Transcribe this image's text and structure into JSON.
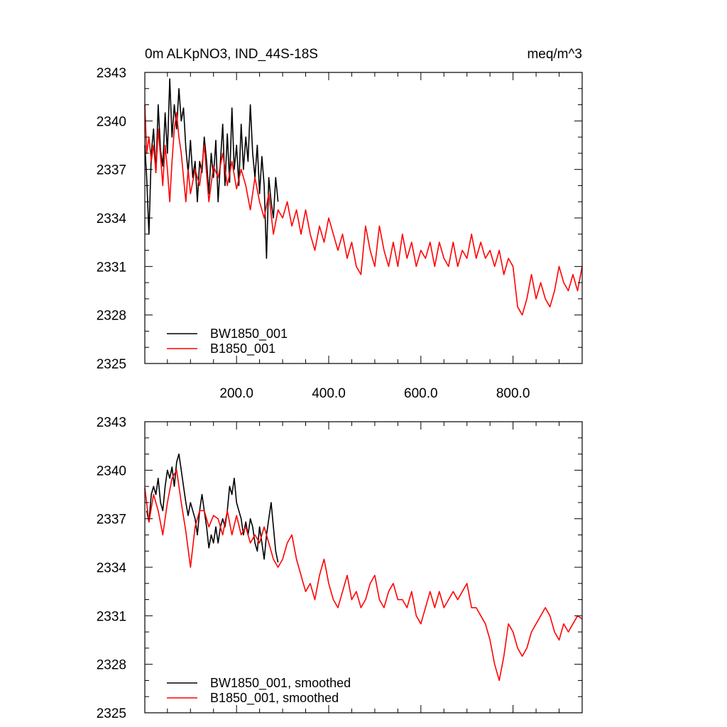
{
  "chart_data": [
    {
      "type": "line",
      "title": "0m ALKpNO3, IND_44S-18S",
      "units": "meq/m^3",
      "xlim": [
        1,
        950
      ],
      "ylim": [
        2325,
        2343
      ],
      "yticks": [
        2325,
        2328,
        2331,
        2334,
        2337,
        2340,
        2343
      ],
      "ytick_labels": [
        "2325",
        "2328",
        "2331",
        "2334",
        "2337",
        "2340",
        "2343"
      ],
      "xticks": [
        200,
        400,
        600,
        800
      ],
      "xtick_labels": [
        "200.0",
        "400.0",
        "600.0",
        "800.0"
      ],
      "legend": [
        "BW1850_001",
        "B1850_001"
      ],
      "legend_position": "bottom-left",
      "series": [
        {
          "name": "BW1850_001",
          "color": "#000000",
          "x": [
            1,
            5,
            10,
            15,
            20,
            25,
            30,
            35,
            40,
            45,
            50,
            55,
            60,
            65,
            70,
            75,
            80,
            85,
            90,
            95,
            100,
            105,
            110,
            115,
            120,
            125,
            130,
            135,
            140,
            145,
            150,
            155,
            160,
            165,
            170,
            175,
            180,
            185,
            190,
            195,
            200,
            205,
            210,
            215,
            220,
            225,
            230,
            235,
            240,
            245,
            250,
            255,
            260,
            265,
            270,
            275,
            280,
            285,
            290
          ],
          "values": [
            2338.5,
            2336.5,
            2333.0,
            2338.0,
            2339.5,
            2336.8,
            2341.0,
            2338.2,
            2337.2,
            2340.5,
            2338.0,
            2342.6,
            2339.0,
            2341.0,
            2339.5,
            2342.0,
            2340.0,
            2340.8,
            2338.3,
            2336.8,
            2338.8,
            2336.5,
            2337.5,
            2335.0,
            2337.5,
            2336.8,
            2339.0,
            2337.5,
            2335.5,
            2338.0,
            2336.5,
            2338.8,
            2335.0,
            2337.5,
            2339.8,
            2336.0,
            2339.2,
            2336.2,
            2340.8,
            2337.0,
            2338.5,
            2336.0,
            2339.8,
            2337.0,
            2339.0,
            2337.5,
            2341.0,
            2338.0,
            2336.5,
            2338.5,
            2335.5,
            2337.8,
            2336.0,
            2331.5,
            2336.5,
            2335.0,
            2334.0,
            2336.5,
            2335.0
          ]
        },
        {
          "name": "B1850_001",
          "color": "#ff0000",
          "x": [
            1,
            5,
            10,
            15,
            20,
            25,
            30,
            35,
            40,
            45,
            50,
            55,
            60,
            65,
            70,
            75,
            80,
            85,
            90,
            95,
            100,
            110,
            120,
            130,
            140,
            150,
            160,
            170,
            180,
            190,
            200,
            210,
            220,
            230,
            240,
            250,
            260,
            270,
            280,
            290,
            300,
            310,
            320,
            330,
            340,
            350,
            360,
            370,
            380,
            390,
            400,
            410,
            420,
            430,
            440,
            450,
            460,
            470,
            480,
            490,
            500,
            510,
            520,
            530,
            540,
            550,
            560,
            570,
            580,
            590,
            600,
            610,
            620,
            630,
            640,
            650,
            660,
            670,
            680,
            690,
            700,
            710,
            720,
            730,
            740,
            750,
            760,
            770,
            780,
            790,
            800,
            810,
            820,
            830,
            840,
            850,
            860,
            870,
            880,
            890,
            900,
            910,
            920,
            930,
            940,
            950
          ],
          "values": [
            2341.0,
            2338.0,
            2339.0,
            2337.5,
            2338.5,
            2336.8,
            2339.5,
            2337.8,
            2336.0,
            2338.5,
            2337.0,
            2335.0,
            2337.5,
            2339.5,
            2340.5,
            2339.0,
            2338.0,
            2336.5,
            2335.0,
            2337.0,
            2335.5,
            2337.0,
            2336.0,
            2338.5,
            2335.0,
            2337.2,
            2336.5,
            2338.0,
            2336.0,
            2337.5,
            2335.8,
            2337.0,
            2336.0,
            2334.5,
            2336.5,
            2335.0,
            2334.0,
            2335.5,
            2333.0,
            2334.5,
            2334.0,
            2335.0,
            2333.5,
            2334.5,
            2333.0,
            2334.5,
            2333.0,
            2332.0,
            2333.5,
            2332.5,
            2334.0,
            2333.0,
            2332.0,
            2333.0,
            2331.5,
            2332.5,
            2331.0,
            2330.5,
            2333.5,
            2332.0,
            2331.0,
            2333.5,
            2332.0,
            2331.0,
            2332.5,
            2331.0,
            2333.0,
            2331.5,
            2332.5,
            2331.0,
            2332.0,
            2331.5,
            2332.5,
            2331.0,
            2332.5,
            2331.5,
            2331.0,
            2332.5,
            2331.0,
            2332.0,
            2331.5,
            2333.0,
            2331.5,
            2332.5,
            2331.5,
            2332.0,
            2331.0,
            2332.0,
            2330.5,
            2331.5,
            2331.0,
            2328.5,
            2328.0,
            2329.0,
            2330.5,
            2329.0,
            2330.0,
            2329.0,
            2328.5,
            2329.5,
            2331.0,
            2330.0,
            2329.5,
            2330.5,
            2329.5,
            2331.0
          ]
        }
      ]
    },
    {
      "type": "line",
      "title": "",
      "xlim": [
        1,
        950
      ],
      "ylim": [
        2325,
        2343
      ],
      "yticks": [
        2325,
        2328,
        2331,
        2334,
        2337,
        2340,
        2343
      ],
      "ytick_labels": [
        "2325",
        "2328",
        "2331",
        "2334",
        "2337",
        "2340",
        "2343"
      ],
      "xticks": [
        200,
        400,
        600,
        800
      ],
      "legend": [
        "BW1850_001, smoothed",
        "B1850_001, smoothed"
      ],
      "legend_position": "bottom-left",
      "series": [
        {
          "name": "BW1850_001, smoothed",
          "color": "#000000",
          "x": [
            5,
            10,
            15,
            20,
            25,
            30,
            35,
            40,
            45,
            50,
            55,
            60,
            65,
            70,
            75,
            80,
            85,
            90,
            95,
            100,
            105,
            110,
            115,
            120,
            125,
            130,
            135,
            140,
            145,
            150,
            155,
            160,
            165,
            170,
            175,
            180,
            185,
            190,
            195,
            200,
            205,
            210,
            215,
            220,
            225,
            230,
            235,
            240,
            245,
            250,
            255,
            260,
            265,
            270,
            275,
            280,
            285,
            290
          ],
          "values": [
            2337.5,
            2336.8,
            2338.5,
            2339.0,
            2338.5,
            2339.5,
            2338.0,
            2337.5,
            2339.0,
            2340.0,
            2339.5,
            2340.2,
            2339.0,
            2340.5,
            2341.0,
            2340.0,
            2339.0,
            2338.0,
            2337.2,
            2338.0,
            2337.5,
            2337.0,
            2336.0,
            2337.5,
            2338.5,
            2337.5,
            2336.5,
            2335.2,
            2336.0,
            2335.5,
            2336.5,
            2335.5,
            2336.5,
            2337.0,
            2336.5,
            2337.5,
            2339.0,
            2338.5,
            2339.5,
            2338.0,
            2337.5,
            2337.0,
            2336.0,
            2336.8,
            2336.0,
            2337.0,
            2336.5,
            2335.5,
            2335.0,
            2336.5,
            2335.5,
            2334.5,
            2336.0,
            2337.0,
            2338.0,
            2336.5,
            2335.0,
            2334.3
          ]
        },
        {
          "name": "B1850_001, smoothed",
          "color": "#ff0000",
          "x": [
            1,
            10,
            20,
            30,
            40,
            50,
            60,
            70,
            80,
            90,
            100,
            110,
            120,
            130,
            140,
            150,
            160,
            170,
            180,
            190,
            200,
            210,
            220,
            230,
            240,
            250,
            260,
            270,
            280,
            290,
            300,
            310,
            320,
            330,
            340,
            350,
            360,
            370,
            380,
            390,
            400,
            410,
            420,
            430,
            440,
            450,
            460,
            470,
            480,
            490,
            500,
            510,
            520,
            530,
            540,
            550,
            560,
            570,
            580,
            590,
            600,
            610,
            620,
            630,
            640,
            650,
            660,
            670,
            680,
            690,
            700,
            710,
            720,
            730,
            740,
            750,
            760,
            770,
            780,
            790,
            800,
            810,
            820,
            830,
            840,
            850,
            860,
            870,
            880,
            890,
            900,
            910,
            920,
            930,
            940,
            950
          ],
          "values": [
            2338.9,
            2336.8,
            2338.5,
            2337.5,
            2336.0,
            2338.0,
            2339.5,
            2340.0,
            2338.0,
            2336.2,
            2334.0,
            2336.5,
            2337.5,
            2337.5,
            2336.5,
            2337.2,
            2337.0,
            2336.0,
            2337.5,
            2336.0,
            2337.2,
            2336.0,
            2336.5,
            2335.5,
            2336.0,
            2335.5,
            2336.5,
            2335.5,
            2334.5,
            2334.0,
            2334.5,
            2335.5,
            2336.0,
            2334.5,
            2333.5,
            2332.5,
            2333.0,
            2332.0,
            2333.5,
            2334.5,
            2333.0,
            2332.0,
            2331.5,
            2332.5,
            2333.5,
            2332.0,
            2332.5,
            2331.5,
            2332.0,
            2333.0,
            2333.5,
            2332.0,
            2331.5,
            2332.5,
            2333.0,
            2332.0,
            2332.0,
            2331.5,
            2332.5,
            2331.0,
            2330.5,
            2331.5,
            2332.5,
            2331.5,
            2332.5,
            2331.5,
            2332.0,
            2332.5,
            2332.0,
            2332.5,
            2333.0,
            2331.5,
            2331.5,
            2331.0,
            2330.5,
            2329.5,
            2328.0,
            2327.0,
            2328.5,
            2330.5,
            2330.0,
            2329.0,
            2328.5,
            2329.0,
            2330.0,
            2330.5,
            2331.0,
            2331.5,
            2331.0,
            2330.0,
            2329.5,
            2330.5,
            2330.0,
            2330.5,
            2331.0,
            2330.8
          ]
        }
      ]
    }
  ]
}
